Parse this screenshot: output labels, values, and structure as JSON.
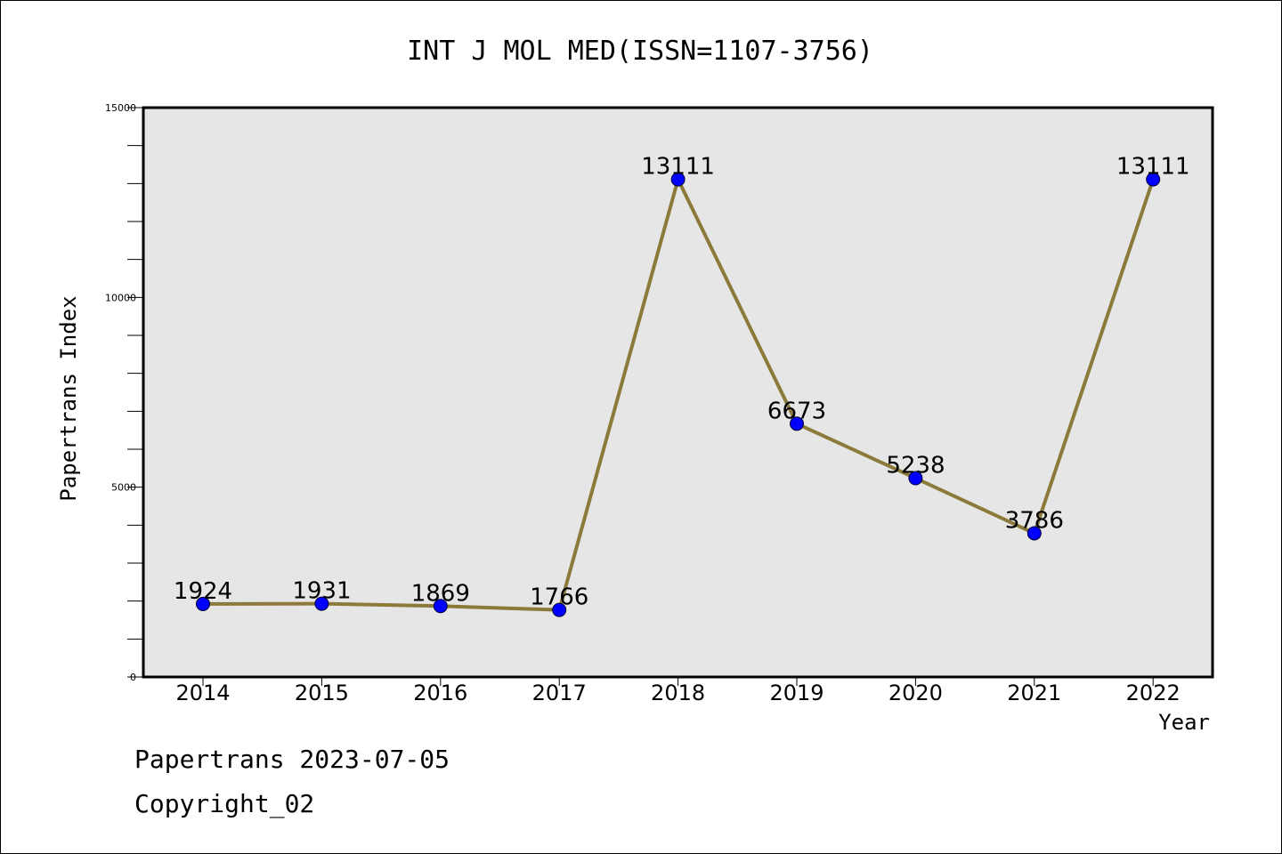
{
  "chart_data": {
    "type": "line",
    "title": "INT J MOL MED(ISSN=1107-3756)",
    "xlabel": "Year",
    "ylabel": "Papertrans Index",
    "x": [
      "2014",
      "2015",
      "2016",
      "2017",
      "2018",
      "2019",
      "2020",
      "2021",
      "2022"
    ],
    "series": [
      {
        "values": [
          1924,
          1931,
          1869,
          1766,
          13111,
          6673,
          5238,
          3786,
          13111
        ],
        "line_color": "#8b7a3a",
        "marker_color": "#0000ff"
      }
    ],
    "ylim": [
      0,
      15000
    ],
    "yticks": [
      0,
      5000,
      10000,
      15000
    ],
    "ytick_labels": [
      "0",
      "5000",
      "10000",
      "15000"
    ],
    "grid": false,
    "plot_background": "#e6e6e6"
  },
  "footer": {
    "line1": "Papertrans 2023-07-05",
    "line2": "Copyright_02"
  }
}
